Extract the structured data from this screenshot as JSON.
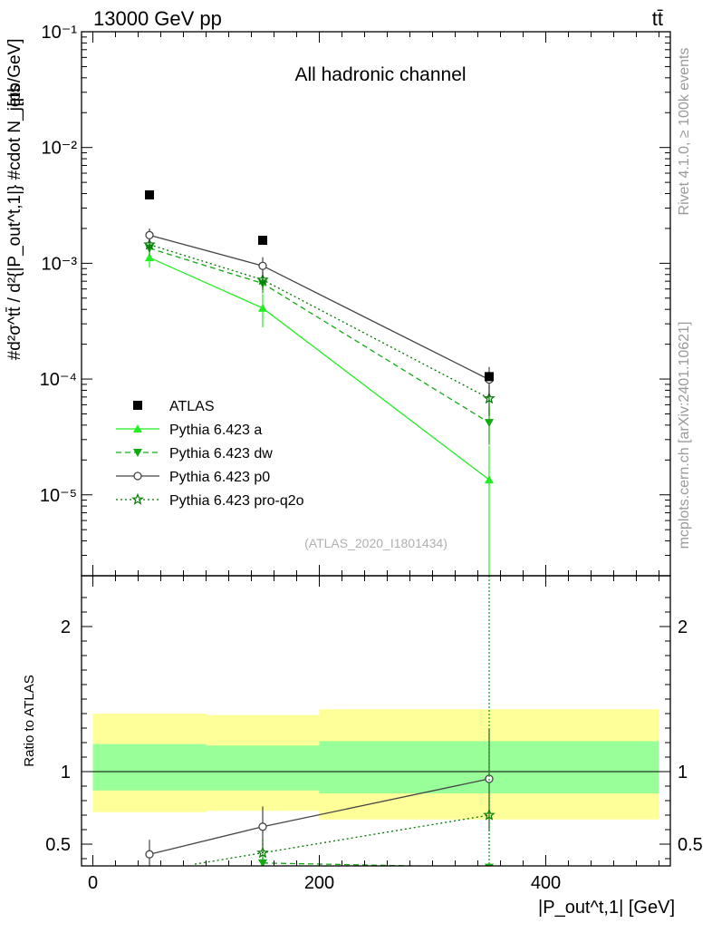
{
  "header": {
    "energy_label": "13000 GeV pp",
    "process_label": "tt̄"
  },
  "side_labels": {
    "rivet": "Rivet 4.1.0, ≥ 100k events",
    "source": "mcplots.cern.ch [arXiv:2401.10621]"
  },
  "chart_data": [
    {
      "type": "scatter",
      "panel": "main",
      "title": "All hadronic channel",
      "watermark": "(ATLAS_2020_I1801434)",
      "ylabel_main": "#d²σ^tt̄ / d²{|P_out^t,1|} #cdot N_jets",
      "ylabel_unit": "[pb/GeV]",
      "yscale": "log",
      "ylim": [
        2e-06,
        0.1
      ],
      "xlim": [
        -10,
        510
      ],
      "y_tick_labels": [
        "10⁻¹",
        "10⁻²",
        "10⁻³",
        "10⁻⁴",
        "10⁻⁵"
      ],
      "x": [
        50,
        150,
        350
      ],
      "series": [
        {
          "name": "ATLAS",
          "color": "#000000",
          "marker": "square",
          "line": "none",
          "values": [
            0.0039,
            0.00158,
            0.000105
          ]
        },
        {
          "name": "Pythia 6.423 a",
          "color": "#22ee22",
          "marker": "triangle-up",
          "line": "solid",
          "values": [
            0.00112,
            0.00041,
            1.35e-05
          ],
          "err_low": [
            0.0002,
            0.00013,
            1.2e-05
          ],
          "err_high": [
            0.0002,
            0.00013,
            1.3e-05
          ]
        },
        {
          "name": "Pythia 6.423 dw",
          "color": "#11aa11",
          "marker": "triangle-down",
          "line": "dashed",
          "values": [
            0.00135,
            0.00067,
            4.2e-05
          ],
          "err_low": [
            0.00018,
            0.00012,
            1.5e-05
          ],
          "err_high": [
            0.00018,
            0.00012,
            1.5e-05
          ]
        },
        {
          "name": "Pythia 6.423 p0",
          "color": "#444444",
          "marker": "circle-open",
          "line": "solid",
          "values": [
            0.00175,
            0.00095,
            9.9e-05
          ],
          "err_low": [
            0.00025,
            0.00018,
            2.8e-05
          ],
          "err_high": [
            0.00025,
            0.00018,
            2.8e-05
          ]
        },
        {
          "name": "Pythia 6.423 pro-q2o",
          "color": "#007700",
          "marker": "star",
          "line": "dotted",
          "values": [
            0.00145,
            0.00072,
            6.8e-05
          ],
          "err_low": [
            0.0002,
            0.00013,
            2e-05
          ],
          "err_high": [
            0.0002,
            0.00013,
            2e-05
          ]
        }
      ],
      "legend_position": "bottom-left"
    },
    {
      "type": "scatter",
      "panel": "ratio",
      "ylabel": "Ratio to ATLAS",
      "xlabel": "|P_out^t,1| [GeV]",
      "ylim": [
        0.35,
        2.35
      ],
      "xlim": [
        -10,
        510
      ],
      "x_tick_labels": [
        "0",
        "200",
        "400"
      ],
      "y_tick_labels": [
        "0.5",
        "1",
        "2"
      ],
      "bands": {
        "bins": [
          [
            0,
            100
          ],
          [
            100,
            200
          ],
          [
            200,
            500
          ]
        ],
        "inner": [
          [
            0.87,
            1.19
          ],
          [
            0.87,
            1.18
          ],
          [
            0.85,
            1.21
          ]
        ],
        "outer": [
          [
            0.72,
            1.4
          ],
          [
            0.73,
            1.39
          ],
          [
            0.67,
            1.43
          ]
        ],
        "inner_color": "#99ff99",
        "outer_color": "#ffff99"
      },
      "series": [
        {
          "name": "Pythia 6.423 p0",
          "color": "#444444",
          "marker": "circle-open",
          "line": "solid",
          "x": [
            50,
            150,
            350
          ],
          "values": [
            0.43,
            0.62,
            0.95
          ],
          "err_low": [
            0.1,
            0.14,
            0.35
          ],
          "err_high": [
            0.1,
            0.14,
            0.35
          ]
        },
        {
          "name": "Pythia 6.423 pro-q2o",
          "color": "#007700",
          "marker": "star",
          "line": "dotted",
          "x": [
            150,
            350
          ],
          "values": [
            0.44,
            0.7
          ],
          "err_low": [
            0.09,
            0.25
          ],
          "err_high": [
            0.09,
            0.25
          ],
          "start_x": 90
        },
        {
          "name": "Pythia 6.423 dw",
          "color": "#11aa11",
          "marker": "triangle-down",
          "line": "dashed",
          "x": [
            150,
            350
          ],
          "values": [
            0.37,
            0.34
          ],
          "err_low": [
            0.05,
            0.0
          ],
          "err_high": [
            0.05,
            0.0
          ]
        }
      ]
    }
  ]
}
